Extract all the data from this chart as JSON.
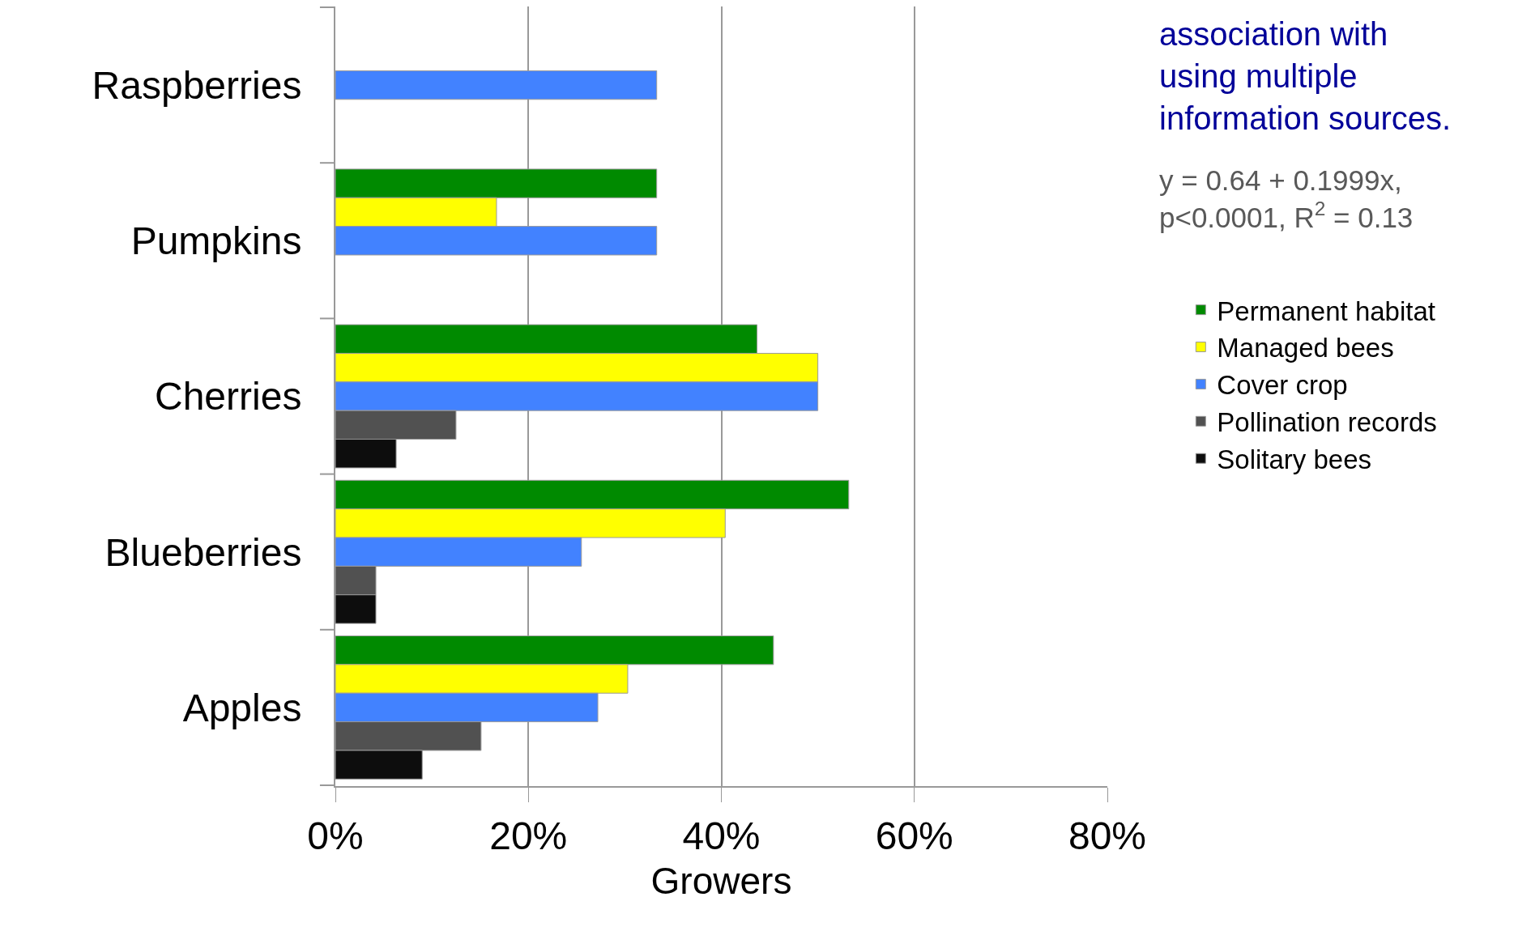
{
  "chart_data": {
    "type": "bar",
    "orientation": "horizontal",
    "xlabel": "Growers",
    "categories": [
      "Raspberries",
      "Pumpkins",
      "Cherries",
      "Blueberries",
      "Apples"
    ],
    "series": [
      {
        "name": "Permanent habitat",
        "color": "#008a00",
        "values": [
          null,
          33.3,
          43.7,
          53.2,
          45.4
        ]
      },
      {
        "name": "Managed bees",
        "color": "#ffff00",
        "values": [
          null,
          16.7,
          50.0,
          40.4,
          30.3
        ]
      },
      {
        "name": "Cover crop",
        "color": "#4282ff",
        "values": [
          33.3,
          33.3,
          50.0,
          25.5,
          27.2
        ]
      },
      {
        "name": "Pollination records",
        "color": "#515151",
        "values": [
          null,
          null,
          12.5,
          4.2,
          15.1
        ]
      },
      {
        "name": "Solitary bees",
        "color": "#0d0d0d",
        "values": [
          null,
          null,
          6.3,
          4.2,
          9.0
        ]
      }
    ],
    "xlim": [
      0,
      80
    ],
    "xticks": [
      {
        "value": 0,
        "label": "0%"
      },
      {
        "value": 20,
        "label": "20%"
      },
      {
        "value": 40,
        "label": "40%"
      },
      {
        "value": 60,
        "label": "60%"
      },
      {
        "value": 80,
        "label": "80%"
      }
    ],
    "grid": "x",
    "legend": "right",
    "annotations": [
      "association with using multiple information sources.",
      "y = 0.64 + 0.1999x, p<0.0001, R$^{2}$ = 0.13"
    ]
  }
}
